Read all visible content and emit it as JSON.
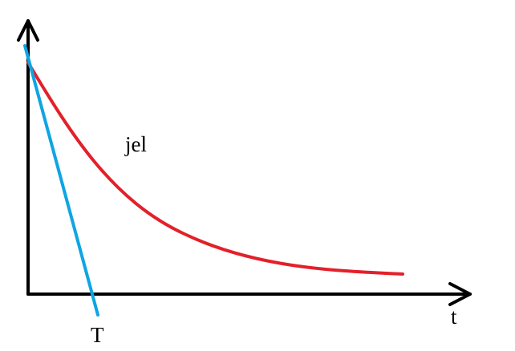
{
  "labels": {
    "curve": "jel",
    "x_axis": "t",
    "tangent_intercept": "T"
  },
  "colors": {
    "axes": "#000000",
    "curve": "#e3202a",
    "tangent": "#0ea5e3",
    "background": "#ffffff"
  }
}
